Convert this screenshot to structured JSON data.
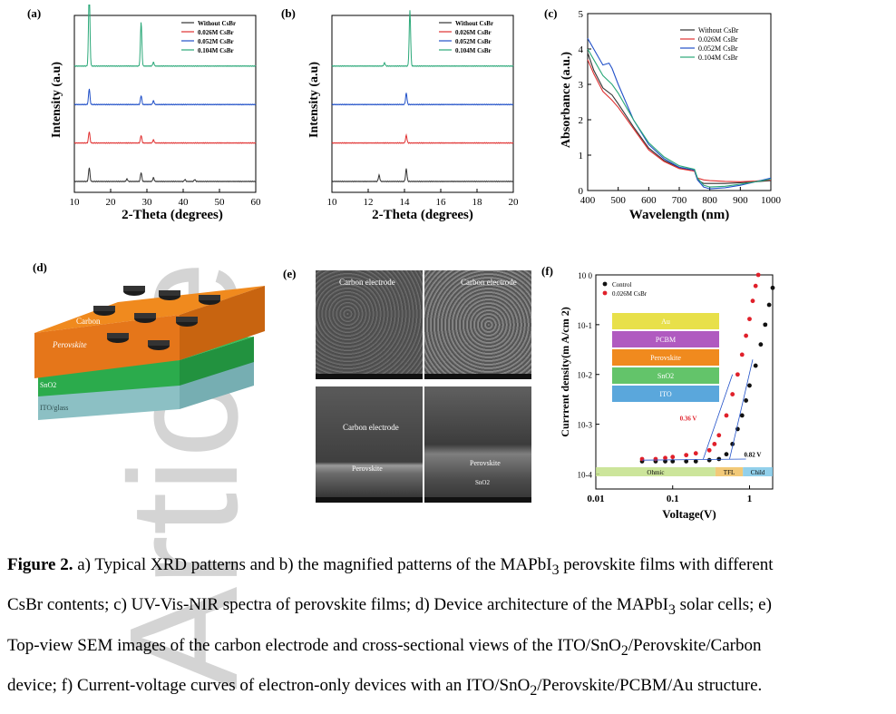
{
  "panels": {
    "a": {
      "label": "(a)",
      "xlabel": "2-Theta (degrees)",
      "ylabel": "Intensity (a.u)"
    },
    "b": {
      "label": "(b)",
      "xlabel": "2-Theta (degrees)",
      "ylabel": "Intensity (a.u)"
    },
    "c": {
      "label": "(c)",
      "xlabel": "Wavelength (nm)",
      "ylabel": "Absorbance (a.u.)"
    },
    "d": {
      "label": "(d)",
      "layers": [
        "Carbon",
        "Perovskite",
        "SnO2",
        "ITO/glass"
      ]
    },
    "e": {
      "label": "(e)",
      "images": [
        "Carbon electrode",
        "Carbon electrode",
        "Carbon electrode",
        "Perovskite"
      ],
      "image_extra": [
        "Perovskite",
        "SnO2"
      ]
    },
    "f": {
      "label": "(f)",
      "xlabel": "Voltage(V)",
      "ylabel": "Currrent density(m A/cm 2)",
      "stack": [
        "Au",
        "PCBM",
        "Perovskite",
        "SnO2",
        "ITO"
      ],
      "annot1": "0.36 V",
      "annot2": "0.82 V",
      "regions": [
        "Ohmic",
        "TFL",
        "Child"
      ]
    }
  },
  "chart_data": [
    {
      "type": "line",
      "title": "",
      "xlabel": "2-Theta (degrees)",
      "ylabel": "Intensity (a.u)",
      "xlim": [
        10,
        60
      ],
      "xticks": [
        "10",
        "20",
        "30",
        "40",
        "50",
        "60"
      ],
      "legend_position": "top-right",
      "series": [
        {
          "name": "Without CsBr",
          "color": "#333333",
          "peaks": [
            [
              14.1,
              22
            ],
            [
              28.4,
              14
            ],
            [
              31.8,
              6
            ],
            [
              24.5,
              4
            ],
            [
              40.5,
              3
            ],
            [
              43.2,
              3
            ]
          ]
        },
        {
          "name": "0.026M CsBr",
          "color": "#e03030",
          "peaks": [
            [
              14.1,
              18
            ],
            [
              28.4,
              12
            ],
            [
              31.8,
              5
            ]
          ]
        },
        {
          "name": "0.052M CsBr",
          "color": "#2050c8",
          "peaks": [
            [
              14.1,
              25
            ],
            [
              28.4,
              14
            ],
            [
              31.8,
              6
            ]
          ]
        },
        {
          "name": "0.104M CsBr",
          "color": "#2aa878",
          "peaks": [
            [
              14.1,
              120
            ],
            [
              28.4,
              70
            ],
            [
              31.8,
              6
            ]
          ]
        }
      ]
    },
    {
      "type": "line",
      "title": "",
      "xlabel": "2-Theta (degrees)",
      "ylabel": "Intensity (a.u)",
      "xlim": [
        10,
        20
      ],
      "xticks": [
        "10",
        "12",
        "14",
        "16",
        "18",
        "20"
      ],
      "legend_position": "top-right",
      "series": [
        {
          "name": "Without CsBr",
          "color": "#333333",
          "peaks": [
            [
              12.6,
              10
            ],
            [
              14.1,
              20
            ]
          ]
        },
        {
          "name": "0.026M CsBr",
          "color": "#e03030",
          "peaks": [
            [
              14.1,
              12
            ]
          ]
        },
        {
          "name": "0.052M CsBr",
          "color": "#2050c8",
          "peaks": [
            [
              14.1,
              18
            ]
          ]
        },
        {
          "name": "0.104M CsBr",
          "color": "#2aa878",
          "peaks": [
            [
              12.9,
              5
            ],
            [
              14.3,
              88
            ]
          ]
        }
      ]
    },
    {
      "type": "line",
      "title": "",
      "xlabel": "Wavelength (nm)",
      "ylabel": "Absorbance (a.u.)",
      "xlim": [
        400,
        1000
      ],
      "ylim": [
        0,
        5
      ],
      "xticks": [
        "400",
        "500",
        "600",
        "700",
        "800",
        "900",
        "1000"
      ],
      "yticks": [
        "0",
        "1",
        "2",
        "3",
        "4",
        "5"
      ],
      "legend_position": "top-right",
      "series": [
        {
          "name": "Without CsBr",
          "color": "#333333",
          "x": [
            400,
            420,
            450,
            480,
            500,
            550,
            600,
            650,
            700,
            750,
            760,
            780,
            800,
            850,
            900,
            950,
            1000
          ],
          "y": [
            3.9,
            3.4,
            2.9,
            2.7,
            2.45,
            1.8,
            1.2,
            0.85,
            0.65,
            0.55,
            0.3,
            0.2,
            0.2,
            0.2,
            0.22,
            0.25,
            0.28
          ]
        },
        {
          "name": "0.026M CsBr",
          "color": "#e03030",
          "x": [
            400,
            420,
            450,
            480,
            500,
            550,
            600,
            650,
            700,
            750,
            760,
            780,
            800,
            850,
            900,
            950,
            1000
          ],
          "y": [
            3.7,
            3.3,
            2.8,
            2.55,
            2.35,
            1.75,
            1.15,
            0.82,
            0.62,
            0.55,
            0.35,
            0.3,
            0.28,
            0.26,
            0.25,
            0.27,
            0.3
          ]
        },
        {
          "name": "0.052M CsBr",
          "color": "#2050c8",
          "x": [
            400,
            420,
            450,
            470,
            480,
            500,
            550,
            600,
            650,
            700,
            750,
            760,
            780,
            800,
            850,
            900,
            950,
            1000
          ],
          "y": [
            4.3,
            4.0,
            3.55,
            3.6,
            3.45,
            3.0,
            2.0,
            1.3,
            0.9,
            0.66,
            0.58,
            0.3,
            0.1,
            0.05,
            0.08,
            0.15,
            0.25,
            0.35
          ]
        },
        {
          "name": "0.104M CsBr",
          "color": "#2aa878",
          "x": [
            400,
            420,
            450,
            480,
            500,
            550,
            600,
            650,
            700,
            750,
            760,
            780,
            800,
            850,
            900,
            950,
            1000
          ],
          "y": [
            4.0,
            3.7,
            3.25,
            3.0,
            2.75,
            2.0,
            1.35,
            0.95,
            0.7,
            0.6,
            0.35,
            0.15,
            0.1,
            0.12,
            0.18,
            0.25,
            0.32
          ]
        }
      ]
    },
    {
      "type": "scatter",
      "title": "",
      "xlabel": "Voltage(V)",
      "ylabel": "Currrent density(m A/cm 2)",
      "xscale": "log",
      "yscale": "log",
      "xlim": [
        0.01,
        2
      ],
      "ylim": [
        5e-05,
        1
      ],
      "xticks": [
        "0.01",
        "0.1",
        "1"
      ],
      "yticks": [
        "10-4",
        "10-3",
        "10-2",
        "10-1",
        "10 0"
      ],
      "legend_position": "top-left",
      "series": [
        {
          "name": "Control",
          "color": "#111111",
          "x": [
            0.04,
            0.06,
            0.08,
            0.1,
            0.15,
            0.2,
            0.3,
            0.4,
            0.5,
            0.6,
            0.7,
            0.8,
            0.9,
            1.0,
            1.2,
            1.4,
            1.6,
            1.8,
            2.0
          ],
          "y": [
            0.00018,
            0.00018,
            0.00018,
            0.00018,
            0.00018,
            0.00018,
            0.00019,
            0.0002,
            0.00025,
            0.0004,
            0.0008,
            0.0015,
            0.003,
            0.006,
            0.015,
            0.04,
            0.1,
            0.25,
            0.55
          ]
        },
        {
          "name": "0.026M CsBr",
          "color": "#e0202a",
          "x": [
            0.04,
            0.06,
            0.08,
            0.1,
            0.15,
            0.2,
            0.3,
            0.35,
            0.4,
            0.5,
            0.6,
            0.7,
            0.8,
            0.9,
            1.0,
            1.1,
            1.2,
            1.3
          ],
          "y": [
            0.0002,
            0.0002,
            0.00021,
            0.00022,
            0.00024,
            0.00026,
            0.0003,
            0.0004,
            0.0006,
            0.0015,
            0.004,
            0.01,
            0.025,
            0.06,
            0.13,
            0.3,
            0.6,
            1.0
          ]
        }
      ]
    }
  ],
  "caption": {
    "fig_label": "Figure 2.",
    "line1": " a) Typical XRD patterns and b) the magnified patterns of the MAPbI",
    "line1_sub": "3",
    "line1_end": " perovskite films with different",
    "line2": "CsBr contents; c) UV-Vis-NIR spectra of perovskite films; d) Device architecture of the MAPbI",
    "line2_sub": "3",
    "line2_end": " solar cells; e)",
    "line3": "Top-view SEM images of the carbon electrode and cross-sectional views of    the ITO/SnO",
    "line3_sub": "2",
    "line3_end": "/Perovskite/Carbon",
    "line4": "device; f) Current-voltage curves of electron-only devices with an ITO/SnO",
    "line4_sub": "2",
    "line4_end": "/Perovskite/PCBM/Au structure."
  },
  "watermark": "Article"
}
